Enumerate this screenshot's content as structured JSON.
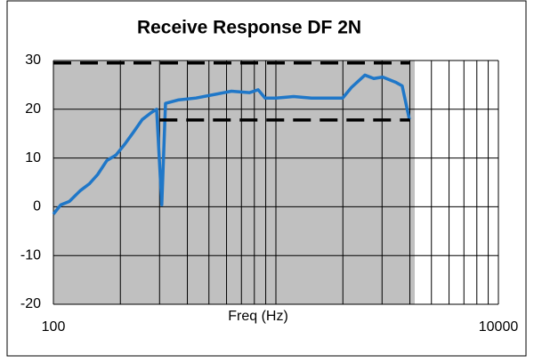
{
  "chart_data": {
    "type": "line",
    "title": "Receive Response DF 2N",
    "xlabel": "Freq (Hz)",
    "xlog": true,
    "xlim": [
      100,
      10000
    ],
    "xticks": [
      100,
      10000
    ],
    "xgrid": [
      100,
      200,
      300,
      400,
      500,
      600,
      700,
      800,
      900,
      1000,
      2000,
      3000,
      4000,
      5000,
      6000,
      7000,
      8000,
      9000,
      10000
    ],
    "ylim": [
      -20,
      30
    ],
    "yticks": [
      -20,
      -10,
      0,
      10,
      20,
      30
    ],
    "grid": true,
    "series": [
      {
        "color": "#1f77c8",
        "x": [
          100,
          108,
          118,
          132,
          145,
          158,
          174,
          191,
          209,
          229,
          251,
          275,
          291,
          307,
          319,
          363,
          437,
          525,
          631,
          760,
          832,
          894,
          1000,
          1202,
          1445,
          1738,
          1995,
          2188,
          2512,
          2754,
          3020,
          3467,
          3694,
          3981
        ],
        "values": [
          -1.5,
          0.4,
          1.1,
          3.3,
          4.7,
          6.6,
          9.5,
          10.6,
          12.8,
          15.3,
          17.9,
          19.3,
          20,
          0.4,
          21.2,
          21.9,
          22.3,
          23,
          23.7,
          23.4,
          24,
          22.3,
          22.3,
          22.6,
          22.3,
          22.3,
          22.3,
          24.5,
          27,
          26.3,
          26.6,
          25.5,
          24.8,
          17.9
        ]
      },
      {
        "color": "#000000",
        "dashed": true,
        "x": [
          100,
          4000
        ],
        "values": [
          29.5,
          29.5
        ]
      },
      {
        "color": "#000000",
        "dashed": true,
        "x": [
          300,
          4000
        ],
        "values": [
          17.8,
          17.8
        ]
      }
    ]
  }
}
